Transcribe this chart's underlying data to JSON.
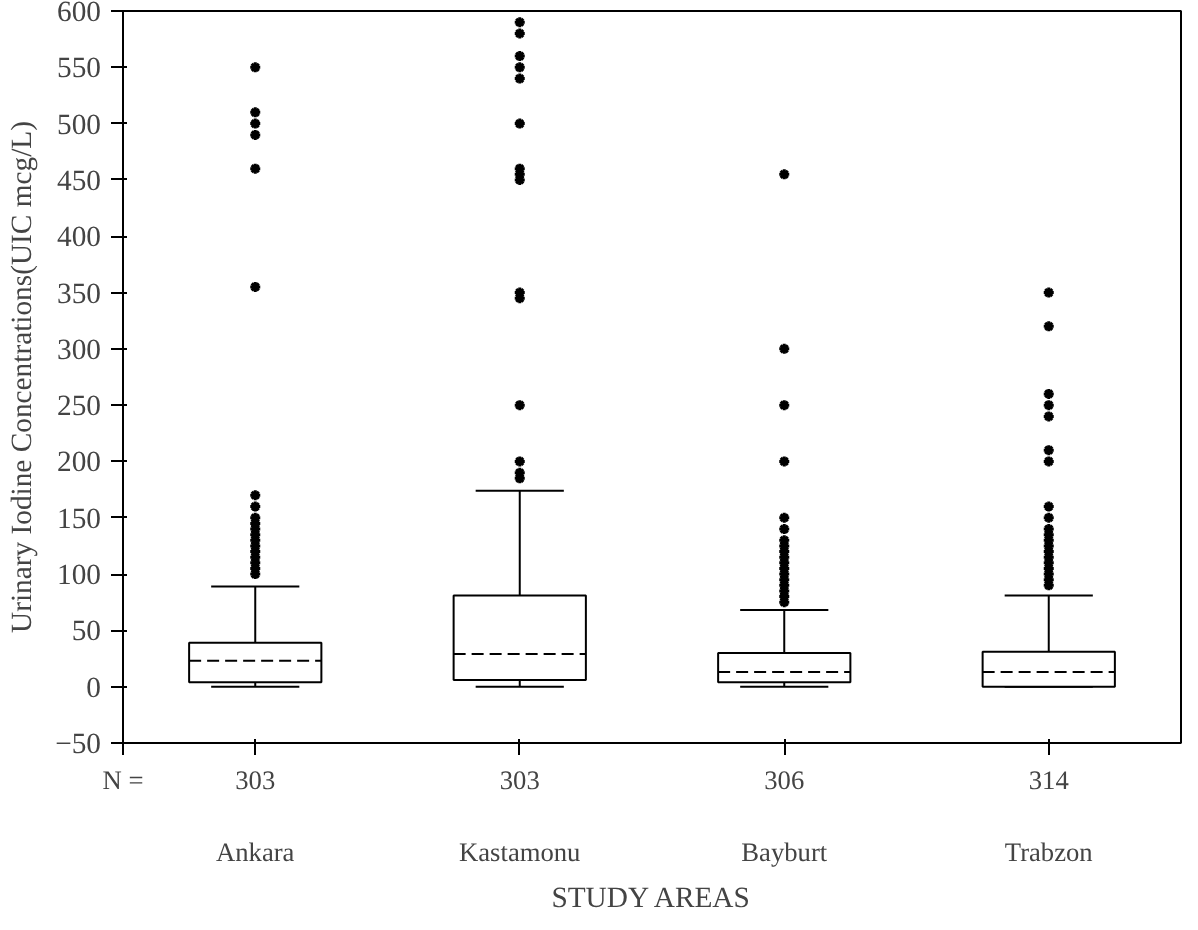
{
  "chart_data": {
    "type": "box",
    "xlabel": "STUDY AREAS",
    "ylabel": "Urinary Iodine Concentrations(UIC mcg/L)",
    "categories": [
      "Ankara",
      "Kastamonu",
      "Bayburt",
      "Trabzon"
    ],
    "boxes": [
      {
        "low": 0,
        "q1": 4,
        "median": 23,
        "q3": 39,
        "high": 89,
        "outliers": [
          100,
          105,
          110,
          115,
          120,
          125,
          130,
          135,
          140,
          145,
          150,
          160,
          170,
          355,
          460,
          490,
          500,
          510,
          550
        ]
      },
      {
        "low": 0,
        "q1": 6,
        "median": 29,
        "q3": 81,
        "high": 174,
        "outliers": [
          185,
          190,
          200,
          250,
          345,
          350,
          450,
          455,
          460,
          500,
          540,
          550,
          560,
          580,
          590
        ]
      },
      {
        "low": 0,
        "q1": 4,
        "median": 13,
        "q3": 30,
        "high": 68,
        "outliers": [
          75,
          80,
          85,
          90,
          95,
          100,
          105,
          110,
          115,
          120,
          125,
          130,
          140,
          150,
          200,
          250,
          300,
          455
        ]
      },
      {
        "low": 0,
        "q1": 0,
        "median": 13,
        "q3": 31,
        "high": 81,
        "outliers": [
          90,
          95,
          100,
          105,
          110,
          115,
          120,
          125,
          130,
          135,
          140,
          150,
          160,
          200,
          210,
          240,
          250,
          260,
          320,
          350
        ]
      }
    ],
    "ylim": [
      -50,
      600
    ],
    "yticks": [
      -50,
      0,
      50,
      100,
      150,
      200,
      250,
      300,
      350,
      400,
      450,
      500,
      550,
      600
    ],
    "marker": "star",
    "grid": false,
    "annotations": [
      "N =",
      "303",
      "303",
      "306",
      "314"
    ]
  }
}
